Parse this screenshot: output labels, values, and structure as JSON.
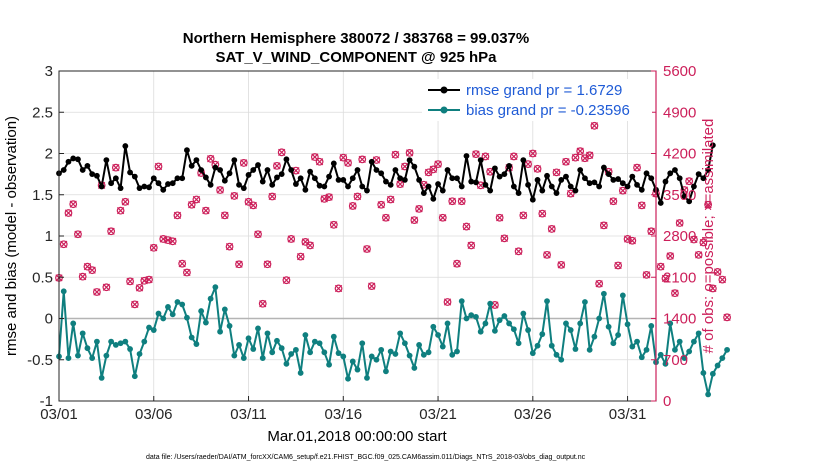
{
  "colors": {
    "rmse": "#000000",
    "bias": "#0f7f7f",
    "obs": "#cc1f5a",
    "zero_line": "#b4b4b4",
    "legend_text": "#1f5bd6"
  },
  "chart_data": {
    "type": "line",
    "title_line1": "Northern Hemisphere 380072 / 383768 = 99.037%",
    "title_line2": "SAT_V_WIND_COMPONENT @ 925 hPa",
    "xlabel": "Mar.01,2018 00:00:00 start",
    "ylabel_left": "rmse and bias (model - observation)",
    "ylabel_right": "# of obs: o=possible; ×=assimilated",
    "footnote": "data file: /Users/raeder/DAI/ATM_forcXX/CAM6_setup/f.e21.FHIST_BGC.f09_025.CAM6assim.011/Diags_NTrS_2018-03/obs_diag_output.nc",
    "xlim": [
      0,
      31.5
    ],
    "ylim_left": [
      -1,
      3
    ],
    "ylim_right": [
      0,
      5600
    ],
    "x_ticks": [
      {
        "value": 0,
        "label": "03/01"
      },
      {
        "value": 5,
        "label": "03/06"
      },
      {
        "value": 10,
        "label": "03/11"
      },
      {
        "value": 15,
        "label": "03/16"
      },
      {
        "value": 20,
        "label": "03/21"
      },
      {
        "value": 25,
        "label": "03/26"
      },
      {
        "value": 30,
        "label": "03/31"
      }
    ],
    "y_ticks_left": [
      {
        "value": 3,
        "label": "3"
      },
      {
        "value": 2.5,
        "label": "2.5"
      },
      {
        "value": 2,
        "label": "2"
      },
      {
        "value": 1.5,
        "label": "1.5"
      },
      {
        "value": 1,
        "label": "1"
      },
      {
        "value": 0.5,
        "label": "0.5"
      },
      {
        "value": 0,
        "label": "0"
      },
      {
        "value": -0.5,
        "label": "-0.5"
      },
      {
        "value": -1,
        "label": "-1"
      }
    ],
    "y_ticks_right": [
      {
        "value": 5600,
        "label": "5600"
      },
      {
        "value": 4900,
        "label": "4900"
      },
      {
        "value": 4200,
        "label": "4200"
      },
      {
        "value": 3500,
        "label": "3500"
      },
      {
        "value": 2800,
        "label": "2800"
      },
      {
        "value": 2100,
        "label": "2100"
      },
      {
        "value": 1400,
        "label": "1400"
      },
      {
        "value": 700,
        "label": "700"
      },
      {
        "value": 0,
        "label": "0"
      }
    ],
    "x_start": 0,
    "x_step": 0.25,
    "series": [
      {
        "name": "rmse grand pr = 1.6729",
        "axis": "left",
        "values": [
          1.76,
          1.8,
          1.9,
          1.94,
          1.93,
          1.8,
          1.85,
          1.75,
          1.73,
          1.6,
          1.92,
          1.64,
          1.7,
          1.58,
          2.09,
          1.77,
          1.72,
          1.58,
          1.6,
          1.59,
          1.7,
          1.64,
          1.56,
          1.63,
          1.64,
          1.7,
          1.7,
          2.04,
          1.85,
          1.92,
          1.8,
          1.71,
          1.62,
          1.83,
          1.8,
          1.67,
          1.76,
          1.92,
          1.62,
          1.58,
          1.74,
          1.8,
          1.86,
          1.66,
          1.8,
          1.62,
          1.71,
          1.75,
          1.93,
          1.8,
          1.63,
          1.7,
          1.56,
          1.78,
          1.7,
          1.61,
          1.6,
          1.72,
          1.88,
          1.68,
          1.68,
          1.6,
          1.7,
          1.8,
          1.6,
          1.55,
          1.9,
          1.8,
          1.76,
          1.66,
          1.62,
          1.8,
          1.7,
          1.68,
          1.92,
          1.84,
          1.68,
          1.52,
          1.6,
          1.45,
          1.63,
          1.55,
          1.8,
          1.7,
          1.7,
          1.6,
          1.97,
          1.66,
          1.65,
          1.92,
          1.62,
          1.55,
          1.82,
          1.72,
          1.75,
          1.85,
          1.6,
          1.52,
          1.92,
          1.62,
          1.44,
          1.68,
          1.55,
          1.73,
          1.6,
          1.52,
          1.68,
          1.72,
          1.6,
          1.55,
          1.8,
          1.7,
          1.64,
          1.65,
          1.6,
          1.83,
          1.75,
          1.68,
          1.69,
          1.64,
          1.6,
          1.72,
          1.62,
          1.56,
          1.76,
          1.7,
          1.56,
          1.4,
          1.66,
          1.76,
          1.8,
          1.7,
          1.48,
          1.42,
          1.6,
          1.75,
          1.7,
          1.8,
          2.1
        ]
      },
      {
        "name": "bias grand pr = -0.23596",
        "axis": "left",
        "values": [
          -0.46,
          0.33,
          -0.48,
          -0.06,
          -0.45,
          -0.18,
          -0.36,
          -0.48,
          -0.28,
          -0.72,
          -0.45,
          -0.28,
          -0.32,
          -0.3,
          -0.28,
          -0.37,
          -0.7,
          -0.43,
          -0.28,
          -0.11,
          -0.14,
          0.06,
          0.0,
          0.14,
          0.05,
          0.2,
          0.17,
          0.01,
          -0.23,
          -0.31,
          0.09,
          -0.05,
          0.24,
          0.38,
          -0.16,
          0.11,
          -0.09,
          -0.45,
          -0.32,
          -0.48,
          -0.24,
          -0.37,
          -0.12,
          -0.48,
          -0.18,
          -0.41,
          -0.27,
          -0.36,
          -0.55,
          -0.43,
          -0.38,
          -0.66,
          -0.2,
          -0.41,
          -0.28,
          -0.3,
          -0.41,
          -0.56,
          -0.22,
          -0.42,
          -0.46,
          -0.73,
          -0.52,
          -0.62,
          -0.3,
          -0.72,
          -0.46,
          -0.5,
          -0.38,
          -0.64,
          -0.4,
          -0.43,
          -0.18,
          -0.3,
          -0.45,
          -0.6,
          -0.32,
          -0.44,
          -0.41,
          -0.1,
          -0.2,
          -0.34,
          -0.06,
          -0.44,
          -0.4,
          0.21,
          0.0,
          0.04,
          0.02,
          -0.16,
          -0.06,
          0.18,
          -0.15,
          -0.02,
          0.03,
          -0.06,
          -0.13,
          -0.3,
          0.06,
          -0.14,
          -0.42,
          -0.33,
          -0.19,
          0.21,
          -0.33,
          -0.44,
          -0.5,
          -0.06,
          -0.14,
          -0.37,
          -0.06,
          0.2,
          -0.38,
          -0.22,
          0.0,
          0.3,
          -0.1,
          -0.3,
          -0.2,
          0.28,
          -0.07,
          -0.34,
          -0.28,
          -0.47,
          -0.38,
          -0.09,
          -0.53,
          -0.44,
          -0.55,
          -0.06,
          -0.38,
          -0.28,
          -0.48,
          -0.4,
          -0.28,
          -0.18,
          -0.66,
          -0.92,
          -0.67,
          -0.57,
          -0.48,
          -0.38
        ]
      },
      {
        "name": "obs possible (o) / assimilated (×)",
        "axis": "right",
        "values": [
          2090,
          2660,
          3190,
          3340,
          2830,
          2110,
          2280,
          2220,
          1850,
          3660,
          1930,
          2880,
          3960,
          3230,
          3380,
          2030,
          1640,
          1920,
          2040,
          2060,
          2600,
          3980,
          2750,
          2730,
          2710,
          3150,
          2330,
          2180,
          3330,
          3420,
          3870,
          3230,
          4110,
          4010,
          3580,
          3150,
          2620,
          3480,
          2320,
          4040,
          3380,
          3320,
          2830,
          1650,
          2320,
          3470,
          3990,
          4220,
          2050,
          2750,
          3910,
          2450,
          2700,
          2640,
          4140,
          4060,
          3430,
          3460,
          2990,
          1910,
          4130,
          4040,
          3310,
          3470,
          4100,
          2580,
          1950,
          4090,
          3330,
          3110,
          3420,
          4180,
          3680,
          3980,
          4210,
          3070,
          3260,
          3670,
          3880,
          3930,
          4020,
          3110,
          1680,
          3390,
          2330,
          3390,
          2960,
          2640,
          4190,
          3660,
          4150,
          3890,
          1630,
          3110,
          2760,
          3960,
          4150,
          2540,
          3150,
          4020,
          4200,
          3940,
          3180,
          2480,
          2920,
          3880,
          2310,
          4060,
          3520,
          4130,
          4240,
          4120,
          4170,
          4670,
          1990,
          2980,
          3890,
          3390,
          2300,
          3570,
          2750,
          2720,
          3960,
          3320,
          2140,
          2880,
          3520,
          2280,
          2080,
          2460,
          1830,
          3020,
          3580,
          3730,
          2740,
          2480,
          2690,
          3330,
          1910,
          2190,
          2060,
          1420
        ]
      }
    ]
  }
}
